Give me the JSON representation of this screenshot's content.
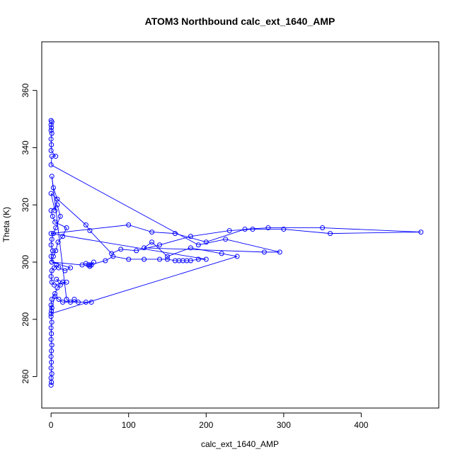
{
  "chart_data": {
    "type": "scatter",
    "title": "ATOM3 Northbound calc_ext_1640_AMP",
    "xlabel": "calc_ext_1640_AMP",
    "ylabel": "Theta (K)",
    "xlim": [
      -12,
      500
    ],
    "ylim": [
      249,
      377
    ],
    "xticks": [
      0,
      100,
      200,
      300,
      400
    ],
    "yticks": [
      260,
      280,
      300,
      320,
      340,
      360
    ],
    "grid": false,
    "series_color": "#0000ff",
    "series": [
      {
        "style": "points-and-lines",
        "points": [
          [
            0,
            257
          ],
          [
            0.5,
            258
          ],
          [
            0,
            259.5
          ],
          [
            1,
            261
          ],
          [
            0,
            263
          ],
          [
            0.5,
            265
          ],
          [
            0,
            267
          ],
          [
            0.5,
            269
          ],
          [
            1,
            271
          ],
          [
            0,
            273
          ],
          [
            0.5,
            275
          ],
          [
            0,
            277
          ],
          [
            1,
            279
          ],
          [
            0,
            281
          ],
          [
            0.5,
            283
          ],
          [
            0,
            285
          ],
          [
            1,
            287
          ],
          [
            5,
            289
          ],
          [
            8,
            291
          ],
          [
            12,
            292
          ],
          [
            7,
            294
          ],
          [
            15,
            293
          ],
          [
            20,
            293
          ],
          [
            4,
            292
          ],
          [
            1,
            293
          ],
          [
            0,
            295
          ],
          [
            1,
            297
          ],
          [
            4,
            298
          ],
          [
            7,
            299
          ],
          [
            10,
            298
          ],
          [
            18,
            297
          ],
          [
            25,
            298
          ],
          [
            1,
            300
          ],
          [
            3,
            302
          ],
          [
            6,
            304
          ],
          [
            9,
            307
          ],
          [
            15,
            309
          ],
          [
            20,
            312
          ],
          [
            5,
            314
          ],
          [
            2,
            316
          ],
          [
            0,
            318
          ],
          [
            8,
            320
          ],
          [
            12,
            316
          ],
          [
            6,
            312
          ],
          [
            3,
            310
          ],
          [
            1,
            308
          ],
          [
            0,
            306
          ],
          [
            2,
            304
          ],
          [
            0,
            302
          ],
          [
            1,
            300
          ],
          [
            40,
            299
          ],
          [
            45,
            299.5
          ],
          [
            48,
            299
          ],
          [
            50,
            298.5
          ],
          [
            52,
            299
          ],
          [
            55,
            300
          ],
          [
            50,
            299
          ],
          [
            70,
            300.5
          ],
          [
            80,
            302
          ],
          [
            100,
            301
          ],
          [
            120,
            301
          ],
          [
            140,
            301
          ],
          [
            150,
            301
          ],
          [
            160,
            300.5
          ],
          [
            165,
            300.5
          ],
          [
            170,
            300.5
          ],
          [
            175,
            300.5
          ],
          [
            180,
            300.5
          ],
          [
            190,
            301
          ],
          [
            200,
            301
          ],
          [
            0,
            310
          ],
          [
            100,
            313
          ],
          [
            130,
            310.5
          ],
          [
            160,
            310
          ],
          [
            200,
            307
          ],
          [
            250,
            311.5
          ],
          [
            280,
            312
          ],
          [
            350,
            312
          ],
          [
            477,
            310.5
          ],
          [
            360,
            310
          ],
          [
            300,
            311.5
          ],
          [
            260,
            311.5
          ],
          [
            230,
            311
          ],
          [
            180,
            309
          ],
          [
            140,
            306
          ],
          [
            110,
            304
          ],
          [
            90,
            304.5
          ],
          [
            78,
            303
          ],
          [
            50,
            311
          ],
          [
            45,
            313
          ],
          [
            0,
            324
          ],
          [
            5,
            318
          ],
          [
            8,
            322
          ],
          [
            3,
            326
          ],
          [
            1,
            330
          ],
          [
            20,
            287
          ],
          [
            25,
            286
          ],
          [
            30,
            287
          ],
          [
            35,
            286
          ],
          [
            45,
            286
          ],
          [
            52,
            286
          ],
          [
            15,
            286
          ],
          [
            10,
            287
          ],
          [
            5,
            288
          ],
          [
            1,
            284
          ],
          [
            0,
            282
          ],
          [
            240,
            302
          ],
          [
            220,
            303
          ],
          [
            180,
            305
          ],
          [
            150,
            302
          ],
          [
            130,
            307
          ],
          [
            120,
            305
          ],
          [
            275,
            303.5
          ],
          [
            295,
            303.5
          ],
          [
            225,
            308
          ],
          [
            190,
            306
          ],
          [
            0,
            334
          ],
          [
            1,
            337
          ],
          [
            6,
            337
          ],
          [
            0,
            339
          ],
          [
            0.5,
            341
          ],
          [
            0,
            343
          ],
          [
            1,
            345
          ],
          [
            0,
            346
          ],
          [
            0.5,
            347
          ],
          [
            0,
            348
          ],
          [
            1,
            349
          ],
          [
            0,
            349.5
          ]
        ]
      }
    ]
  }
}
